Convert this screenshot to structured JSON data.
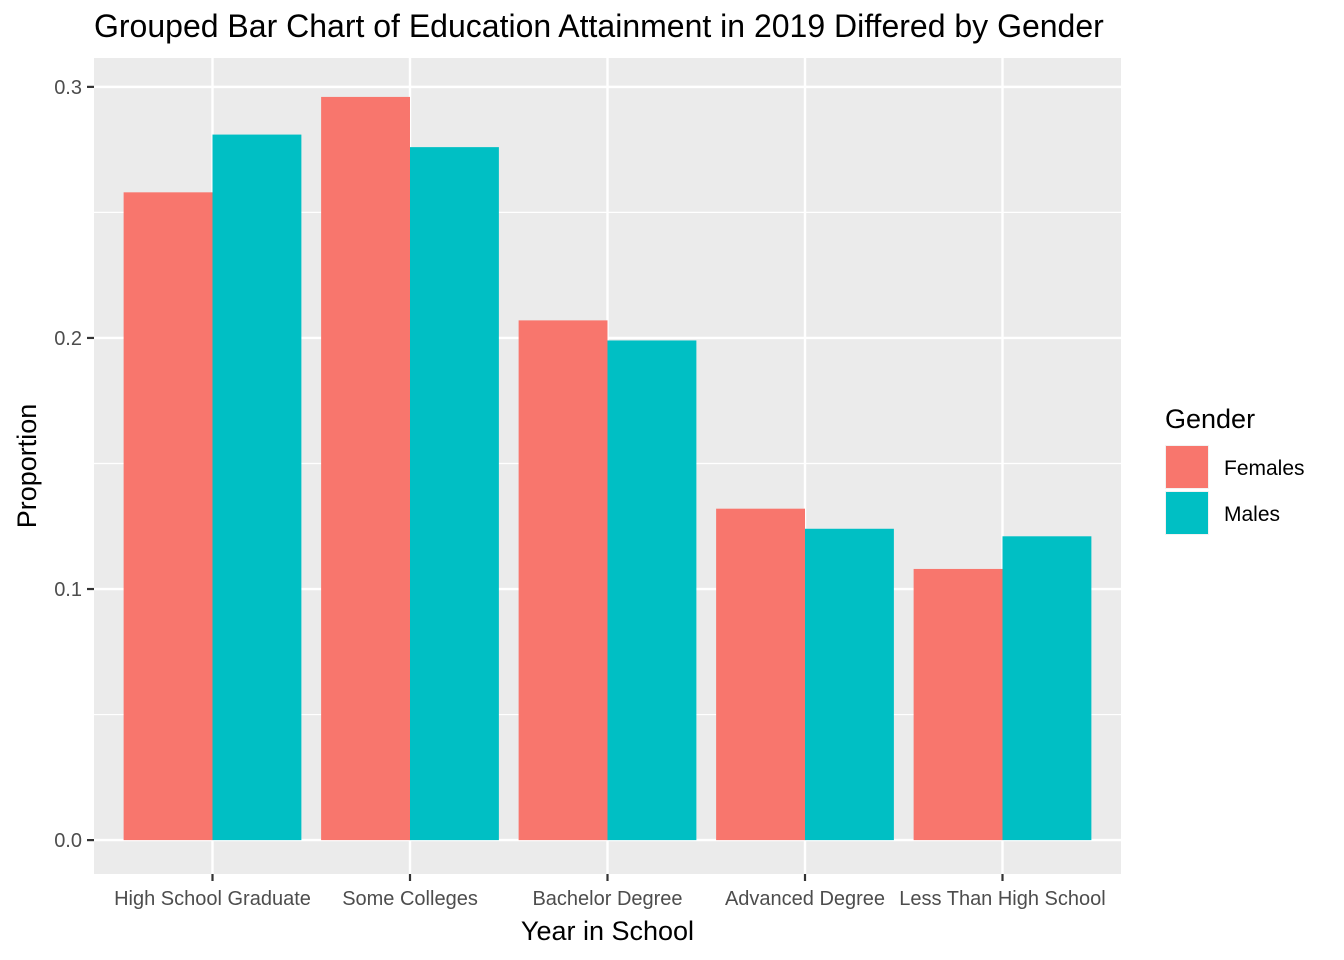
{
  "chart_data": {
    "type": "bar",
    "title": "Grouped Bar Chart of Education Attainment in 2019 Differed by Gender",
    "xlabel": "Year in School",
    "ylabel": "Proportion",
    "categories": [
      "High School Graduate",
      "Some Colleges",
      "Bachelor Degree",
      "Advanced Degree",
      "Less Than High School"
    ],
    "series": [
      {
        "name": "Females",
        "color": "#F8766D",
        "values": [
          0.258,
          0.296,
          0.207,
          0.132,
          0.108
        ]
      },
      {
        "name": "Males",
        "color": "#00BFC4",
        "values": [
          0.281,
          0.276,
          0.199,
          0.124,
          0.121
        ]
      }
    ],
    "ylim": [
      -0.0135,
      0.3115
    ],
    "yticks": [
      0.0,
      0.1,
      0.2,
      0.3
    ],
    "ytick_labels": [
      "0.0",
      "0.1",
      "0.2",
      "0.3"
    ],
    "grid": true,
    "legend": {
      "title": "Gender",
      "position": "right"
    },
    "panel_background": "#EBEBEB"
  }
}
